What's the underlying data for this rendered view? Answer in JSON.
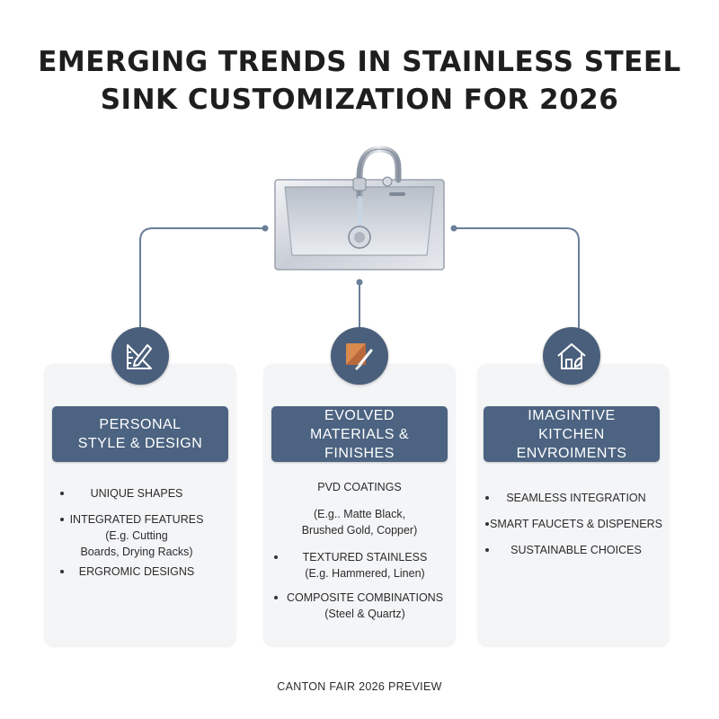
{
  "title": {
    "line1": "EMERGING TRENDS IN STAINLESS STEEL",
    "line2": "SINK CUSTOMIZATION FOR 2026"
  },
  "colors": {
    "header_bg": "#4c6381",
    "badge_bg": "#4a5f7b",
    "card_bg": "#f4f5f7",
    "connector": "#6b7f99"
  },
  "center_icon": "stainless-steel-sink-icon",
  "columns": [
    {
      "icon": "ruler-pencil-icon",
      "header": {
        "line1": "PERSONAL",
        "line2": "STYLE & DESIGN"
      },
      "items": [
        {
          "lines": [
            "UNIQUE SHAPES"
          ]
        },
        {
          "lines": [
            "INTEGRATED FEATURES",
            "(E.g. Cutting",
            "Boards, Drying Racks)"
          ]
        },
        {
          "lines": [
            "ERGROMIC DESIGNS"
          ]
        }
      ]
    },
    {
      "icon": "material-swatch-brush-icon",
      "header": {
        "line1": "EVOLVED",
        "line2": "MATERIALS &",
        "line3": "FINISHES"
      },
      "items": [
        {
          "lines": [
            "PVD COATINGS"
          ]
        },
        {
          "lines": [
            "(E.g.. Matte Black,",
            "Brushed Gold, Copper)"
          ]
        },
        {
          "lines": [
            "TEXTURED STAINLESS",
            "(E.g. Hammered, Linen)"
          ]
        },
        {
          "lines": [
            "COMPOSITE COMBINATIONS",
            "(Steel & Quartz)"
          ]
        }
      ]
    },
    {
      "icon": "eco-house-icon",
      "header": {
        "line1": "IMAGINTIVE",
        "line2": "KITCHEN ENVROIMENTS"
      },
      "items": [
        {
          "lines": [
            "SEAMLESS INTEGRATION"
          ]
        },
        {
          "lines": [
            "SMART FAUCETS & DISPENERS"
          ]
        },
        {
          "lines": [
            "SUSTAINABLE CHOICES"
          ]
        }
      ]
    }
  ],
  "footer": "CANTON FAIR 2026 PREVIEW"
}
